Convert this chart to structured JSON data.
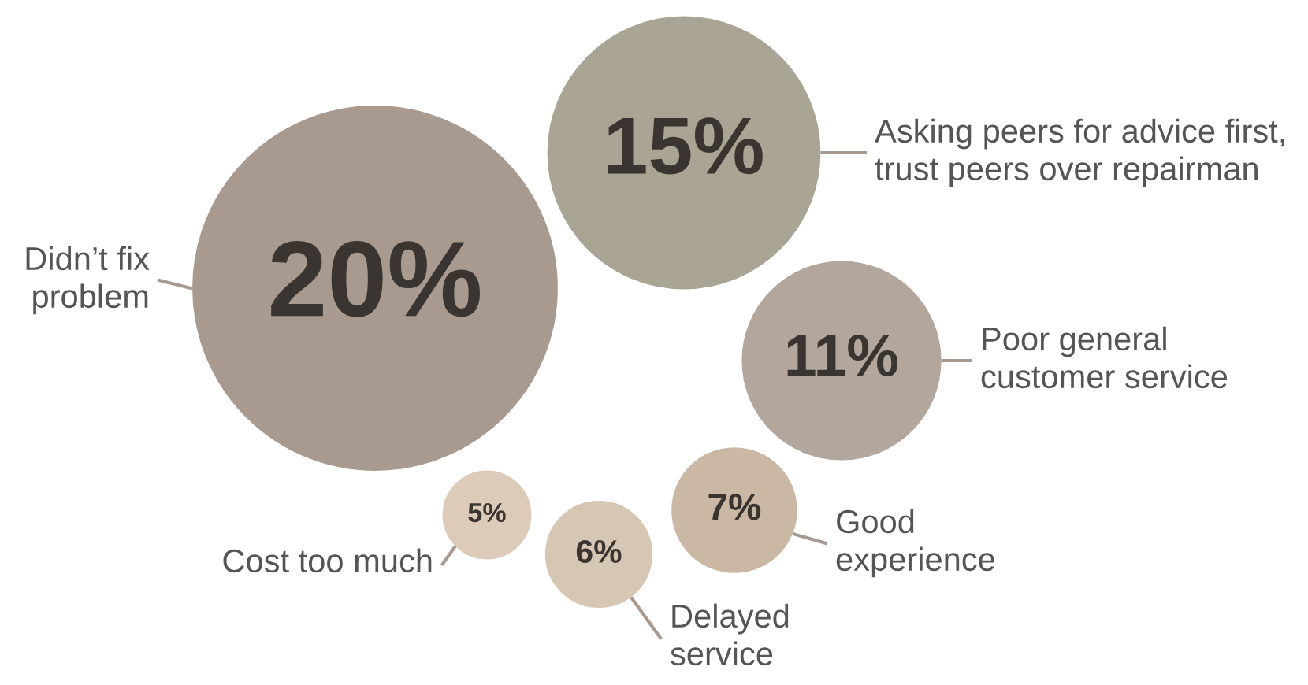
{
  "chart_data": {
    "type": "other",
    "categories": [
      "Didn’t fix\nproblem",
      "Asking peers for advice first,\ntrust peers over repairman",
      "Poor general\ncustomer service",
      "Good\nexperience",
      "Delayed\nservice",
      "Cost too much"
    ],
    "values": [
      20,
      15,
      11,
      7,
      6,
      5
    ],
    "value_labels": [
      "20%",
      "15%",
      "11%",
      "7%",
      "6%",
      "5%"
    ],
    "colors": [
      "#a89a8e",
      "#aaa494",
      "#b3a79d",
      "#cbb8a4",
      "#d6c6b4",
      "#dccbb8"
    ]
  }
}
